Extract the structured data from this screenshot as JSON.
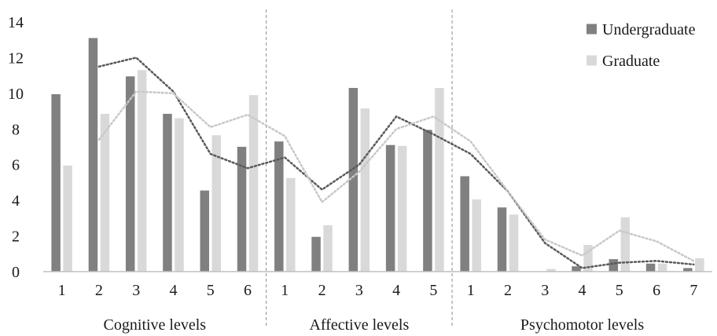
{
  "colors": {
    "undergraduate": "#808080",
    "graduate": "#d9d9d9",
    "trend_undergraduate": "#595959",
    "trend_graduate": "#c8c8c8",
    "axis": "#bfbfbf",
    "separator": "#8c8c8c"
  },
  "chart_data": {
    "type": "bar",
    "title": "",
    "xlabel": "",
    "ylabel": "",
    "ylim": [
      0,
      14
    ],
    "yticks": [
      "0",
      "2",
      "4",
      "6",
      "8",
      "10",
      "12",
      "14"
    ],
    "legend_position": "top-right",
    "grid": false,
    "groups": [
      {
        "label": "Cognitive levels",
        "categories": [
          "1",
          "2",
          "3",
          "4",
          "5",
          "6"
        ]
      },
      {
        "label": "Affective levels",
        "categories": [
          "1",
          "2",
          "3",
          "4",
          "5"
        ]
      },
      {
        "label": "Psychomotor levels",
        "categories": [
          "1",
          "2",
          "3",
          "4",
          "5",
          "6",
          "7"
        ]
      }
    ],
    "series": [
      {
        "name": "Undergraduate",
        "values": [
          9.95,
          13.1,
          10.95,
          8.85,
          4.55,
          7.0,
          7.3,
          1.95,
          10.3,
          7.1,
          7.95,
          5.35,
          3.6,
          0.0,
          0.3,
          0.7,
          0.45,
          0.2
        ]
      },
      {
        "name": "Graduate",
        "values": [
          5.95,
          8.85,
          11.3,
          8.6,
          7.65,
          9.9,
          5.25,
          2.6,
          9.15,
          7.05,
          10.3,
          4.05,
          3.2,
          0.15,
          1.5,
          3.05,
          0.45,
          0.75
        ]
      }
    ],
    "trendlines": [
      {
        "series": "Undergraduate",
        "style": "dotted",
        "values": [
          null,
          11.5,
          12.0,
          10.1,
          6.6,
          5.8,
          6.4,
          4.6,
          6.0,
          8.7,
          7.7,
          6.6,
          4.5,
          1.6,
          0.2,
          0.5,
          0.6,
          0.4
        ]
      },
      {
        "series": "Graduate",
        "style": "dotted",
        "values": [
          null,
          7.4,
          10.1,
          10.0,
          8.1,
          8.8,
          7.6,
          3.9,
          5.6,
          8.0,
          8.7,
          7.3,
          4.5,
          1.8,
          0.9,
          2.3,
          1.7,
          0.6
        ]
      }
    ]
  }
}
